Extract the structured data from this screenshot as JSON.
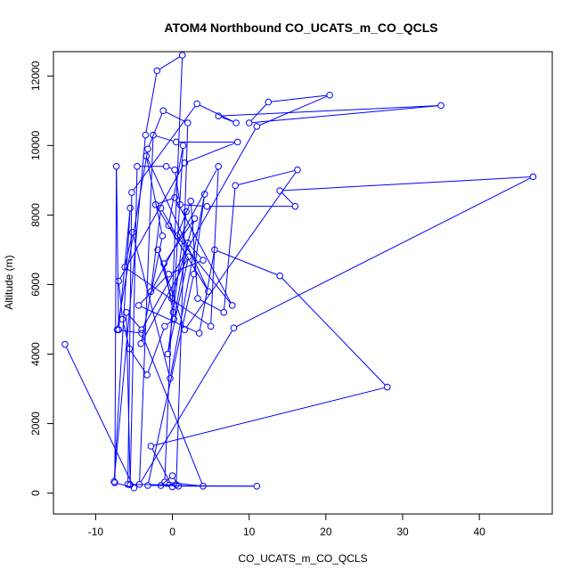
{
  "chart_data": {
    "type": "line",
    "title": "ATOM4 Northbound CO_UCATS_m_CO_QCLS",
    "xlabel": "CO_UCATS_m_CO_QCLS",
    "ylabel": "Altitude (m)",
    "xlim": [
      -15.5,
      49.5
    ],
    "ylim": [
      -600,
      12700
    ],
    "xticks": [
      -10,
      0,
      10,
      20,
      30,
      40
    ],
    "yticks": [
      0,
      2000,
      4000,
      6000,
      8000,
      10000,
      12000
    ],
    "grid": false,
    "series_color": "#0000ff",
    "series": [
      {
        "markers": "open-circle",
        "points": [
          [
            -14,
            4280
          ],
          [
            -5,
            150
          ],
          [
            -7.5,
            300
          ],
          [
            -7.3,
            9400
          ],
          [
            -7.0,
            4700
          ],
          [
            -5.5,
            8200
          ],
          [
            -7.6,
            330
          ],
          [
            -3.5,
            10300
          ],
          [
            -2,
            12150
          ],
          [
            1.3,
            12600
          ],
          [
            -1,
            320
          ],
          [
            4,
            200
          ],
          [
            -4,
            4600
          ],
          [
            -7.2,
            4700
          ],
          [
            -3.2,
            9900
          ],
          [
            -1.2,
            11000
          ],
          [
            2,
            10650
          ],
          [
            0.5,
            240
          ],
          [
            -5.8,
            250
          ],
          [
            -5.3,
            8650
          ],
          [
            3.2,
            11200
          ],
          [
            8.3,
            10650
          ],
          [
            6,
            10850
          ],
          [
            35,
            11150
          ],
          [
            10,
            10650
          ],
          [
            12.5,
            11250
          ],
          [
            20.5,
            11450
          ],
          [
            11,
            10550
          ],
          [
            -4,
            4700
          ],
          [
            -6,
            5200
          ],
          [
            -5.5,
            240
          ],
          [
            -4.6,
            9400
          ],
          [
            -0.8,
            9400
          ],
          [
            0.3,
            9300
          ],
          [
            1,
            8300
          ],
          [
            4.5,
            8250
          ],
          [
            16,
            8250
          ],
          [
            14,
            8700
          ],
          [
            47,
            9100
          ],
          [
            8,
            4750
          ],
          [
            -4.3,
            250
          ],
          [
            -2.5,
            10300
          ],
          [
            0.5,
            10100
          ],
          [
            8.5,
            10100
          ],
          [
            1.6,
            9500
          ],
          [
            -7,
            6100
          ],
          [
            -6.5,
            5000
          ],
          [
            -5.6,
            4150
          ],
          [
            -3.3,
            3400
          ],
          [
            -1,
            4800
          ],
          [
            0.2,
            5000
          ],
          [
            2,
            7200
          ],
          [
            4,
            6700
          ],
          [
            -0.5,
            6300
          ],
          [
            -4.4,
            5400
          ],
          [
            3.5,
            4600
          ],
          [
            5.5,
            7000
          ],
          [
            14,
            6250
          ],
          [
            28,
            3050
          ],
          [
            -2.8,
            1350
          ],
          [
            0,
            180
          ],
          [
            -1.5,
            220
          ],
          [
            0,
            500
          ],
          [
            0.8,
            200
          ],
          [
            11,
            200
          ],
          [
            -3.2,
            220
          ],
          [
            2.8,
            6300
          ],
          [
            4.2,
            8600
          ],
          [
            -0.3,
            3300
          ],
          [
            -5.2,
            7500
          ],
          [
            -6.2,
            6500
          ],
          [
            5,
            4800
          ],
          [
            6,
            9400
          ],
          [
            -2.8,
            5800
          ],
          [
            -1.5,
            8200
          ],
          [
            0.6,
            7400
          ],
          [
            2.4,
            8400
          ],
          [
            3.3,
            5600
          ],
          [
            6.7,
            5200
          ],
          [
            8.2,
            8850
          ],
          [
            16.3,
            9300
          ],
          [
            1.6,
            4700
          ],
          [
            -1.9,
            7000
          ],
          [
            -0.1,
            5600
          ],
          [
            2.9,
            7900
          ],
          [
            -1.1,
            6600
          ],
          [
            0.1,
            5200
          ],
          [
            1.4,
            10000
          ],
          [
            -0.5,
            7700
          ],
          [
            7.8,
            5400
          ],
          [
            0.3,
            8500
          ],
          [
            -2.2,
            8300
          ],
          [
            4.7,
            5800
          ],
          [
            -3.4,
            9700
          ],
          [
            -1.3,
            7400
          ],
          [
            -4.1,
            4300
          ],
          [
            2.1,
            6800
          ],
          [
            -0.6,
            4000
          ],
          [
            1.8,
            8100
          ]
        ]
      }
    ]
  }
}
